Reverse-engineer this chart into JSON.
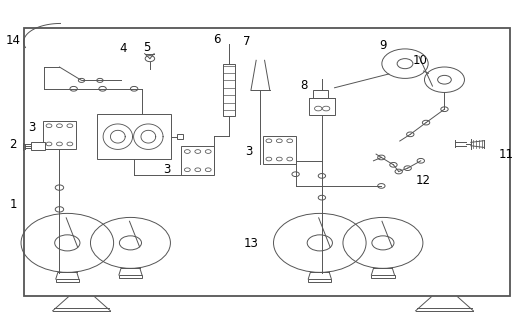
{
  "bg_color": "#ffffff",
  "line_color": "#555555",
  "label_color": "#000000",
  "fig_width": 5.26,
  "fig_height": 3.35
}
